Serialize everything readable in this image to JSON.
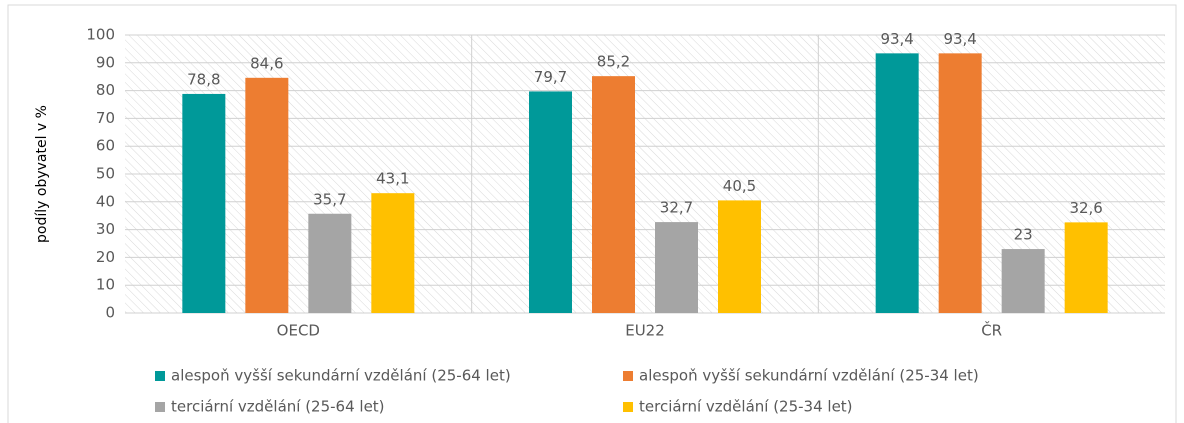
{
  "chart_data": {
    "type": "bar",
    "y_label": "podíly obyvatel v %",
    "categories": [
      "OECD",
      "EU22",
      "ČR"
    ],
    "series": [
      {
        "name": "alespoň vyšší sekundární vzdělání (25-64 let)",
        "color": "#009999",
        "values": [
          78.8,
          79.7,
          93.4
        ],
        "value_labels": [
          "78,8",
          "79,7",
          "93,4"
        ]
      },
      {
        "name": "alespoň vyšší sekundární vzdělání (25-34 let)",
        "color": "#ed7d31",
        "values": [
          84.6,
          85.2,
          93.4
        ],
        "value_labels": [
          "84,6",
          "85,2",
          "93,4"
        ]
      },
      {
        "name": "terciární vzdělání (25-64 let)",
        "color": "#a5a5a5",
        "values": [
          35.7,
          32.7,
          23
        ],
        "value_labels": [
          "35,7",
          "32,7",
          "23"
        ]
      },
      {
        "name": "terciární vzdělání (25-34 let)",
        "color": "#ffc000",
        "values": [
          43.1,
          40.5,
          32.6
        ],
        "value_labels": [
          "43,1",
          "40,5",
          "32,6"
        ]
      }
    ],
    "ylim": [
      0,
      100
    ],
    "yticks": [
      0,
      10,
      20,
      30,
      40,
      50,
      60,
      70,
      80,
      90,
      100
    ],
    "grid": true,
    "legend": "bottom"
  }
}
